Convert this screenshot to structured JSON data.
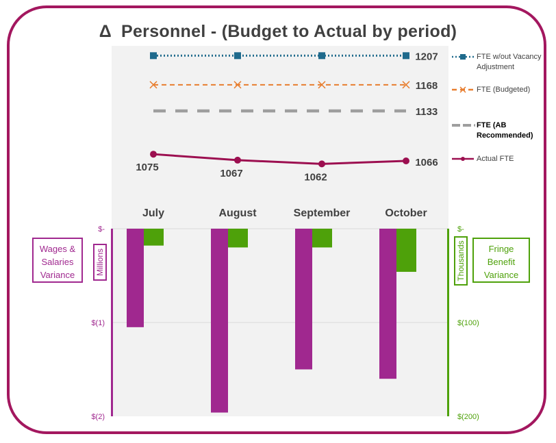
{
  "title": {
    "symbol": "Δ",
    "text": "Personnel - (Budget to Actual by period)"
  },
  "wages_label": [
    "Wages &",
    "Salaries",
    "Variance"
  ],
  "fringe_label": [
    "Fringe",
    "Benefit",
    "Variance"
  ],
  "left_unit": "Millions",
  "right_unit": "Thousands",
  "colors": {
    "frame": "#a3175f",
    "wages_bar": "#a0288f",
    "fringe_bar": "#4ea10a",
    "fte_no_vacancy": "#1f6a8c",
    "fte_budgeted": "#e87d2e",
    "fte_ab_recommended": "#9e9e9e",
    "actual_fte": "#9c0f50"
  },
  "chart_data": [
    {
      "type": "line",
      "categories": [
        "July",
        "August",
        "September",
        "October"
      ],
      "series": [
        {
          "name": "FTE w/out Vacancy Adjustment",
          "values": [
            1207,
            1207,
            1207,
            1207
          ],
          "end_label": "1207",
          "style": "dotted",
          "marker": "square"
        },
        {
          "name": "FTE (Budgeted)",
          "values": [
            1168,
            1168,
            1168,
            1168
          ],
          "end_label": "1168",
          "style": "dashed",
          "marker": "x"
        },
        {
          "name": "FTE (AB Recommended)",
          "values": [
            1133,
            1133,
            1133,
            1133
          ],
          "end_label": "1133",
          "style": "long-dash",
          "marker": "none"
        },
        {
          "name": "Actual FTE",
          "values": [
            1075,
            1067,
            1062,
            1066
          ],
          "point_labels": [
            "1075",
            "1067",
            "1062",
            "1066"
          ],
          "style": "solid",
          "marker": "circle"
        }
      ],
      "legend_position": "right"
    },
    {
      "type": "bar",
      "categories": [
        "July",
        "August",
        "September",
        "October"
      ],
      "series": [
        {
          "name": "Wages & Salaries Variance",
          "axis": "left",
          "unit": "Millions",
          "values": [
            -1.05,
            -1.96,
            -1.5,
            -1.6
          ]
        },
        {
          "name": "Fringe Benefit Variance",
          "axis": "right",
          "unit": "Thousands",
          "values": [
            -18,
            -20,
            -20,
            -46
          ]
        }
      ],
      "left_axis": {
        "ticks": [
          "$-",
          "$(1)",
          "$(2)"
        ],
        "values": [
          0,
          -1,
          -2
        ],
        "range": [
          -2,
          0
        ]
      },
      "right_axis": {
        "ticks": [
          "$-",
          "$(100)",
          "$(200)"
        ],
        "values": [
          0,
          -100,
          -200
        ],
        "range": [
          -200,
          0
        ]
      },
      "grid": true
    }
  ]
}
